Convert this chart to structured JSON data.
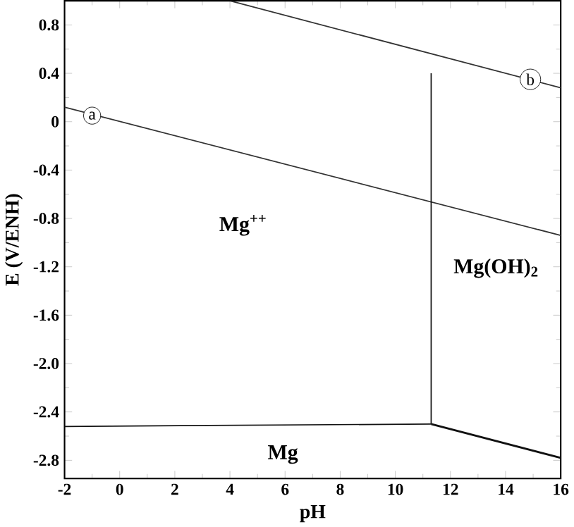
{
  "chart_data": {
    "type": "line",
    "xlabel": "pH",
    "ylabel": "E (V/ENH)",
    "xlim": [
      -2,
      16
    ],
    "ylim": [
      -2.95,
      1.0
    ],
    "xticks": [
      -2,
      0,
      2,
      4,
      6,
      8,
      10,
      12,
      14,
      16
    ],
    "yticks": [
      0.8,
      0.4,
      0,
      -0.4,
      -0.8,
      -1.2,
      -1.6,
      {
        "value": -2.0,
        "label": "-2.0"
      },
      -2.4,
      -2.8
    ],
    "marker": "none",
    "line_style": "solid",
    "series": [
      {
        "color": "#333333",
        "x": [
          -2,
          16
        ],
        "values": [
          0.12,
          -0.94
        ]
      },
      {
        "color": "#333333",
        "x": [
          4,
          16
        ],
        "values": [
          1.0,
          0.28
        ]
      },
      {
        "color": "#111111",
        "x": [
          11.3,
          11.3
        ],
        "values": [
          -2.5,
          0.4
        ]
      },
      {
        "color": "#111111",
        "x": [
          -2,
          11.3
        ],
        "values": [
          -2.52,
          -2.5
        ]
      },
      {
        "color": "#111111",
        "x": [
          11.3,
          16
        ],
        "values": [
          -2.5,
          -2.78
        ]
      }
    ],
    "annotations": [
      {
        "text": "a",
        "x": -1,
        "y": 0.05
      },
      {
        "text": "b",
        "x": 14.9,
        "y": 0.35
      },
      "Mg$^{++}$",
      "Mg(OH)$_{2}$",
      "Mg"
    ]
  }
}
